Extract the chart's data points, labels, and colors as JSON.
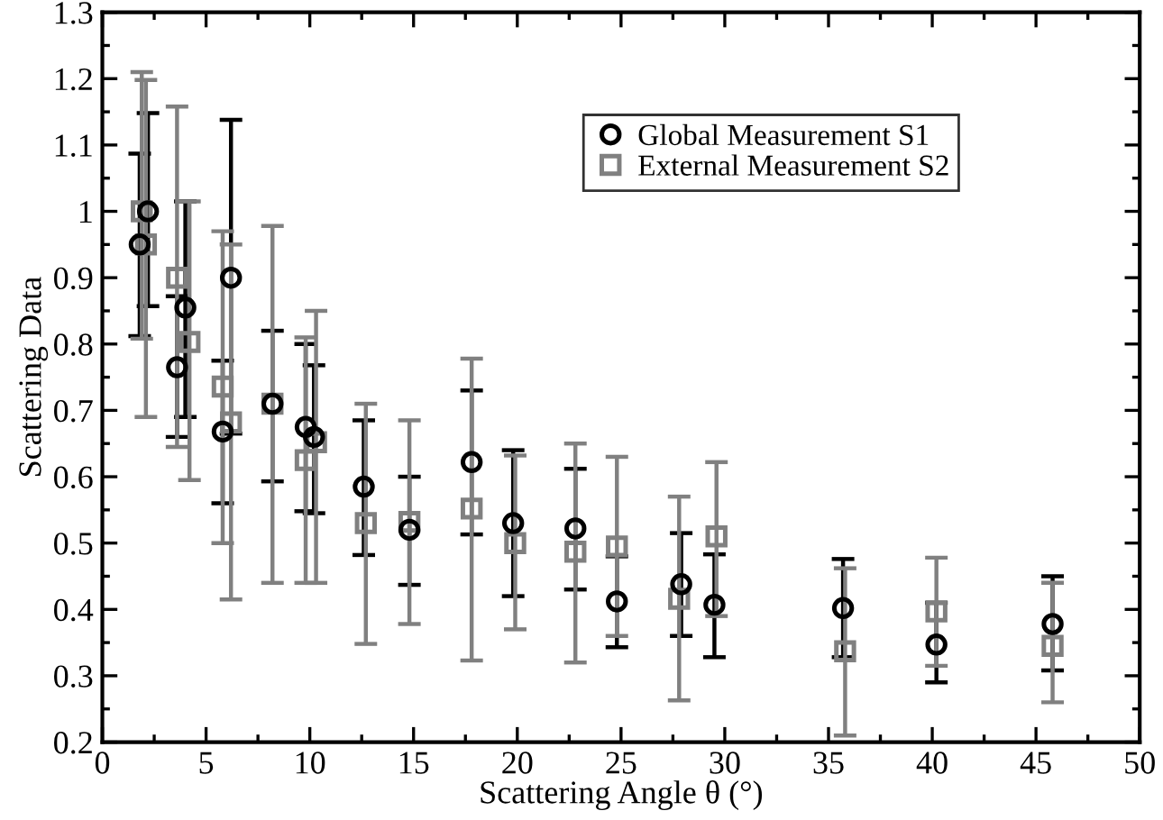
{
  "chart_data": {
    "type": "scatter",
    "xlabel": "Scattering Angle θ (°)",
    "ylabel": "Scattering Data",
    "xlim": [
      0,
      50
    ],
    "xticks": [
      0,
      5,
      10,
      15,
      20,
      25,
      30,
      35,
      40,
      45,
      50
    ],
    "ylim": [
      0.2,
      1.3
    ],
    "yticks": [
      0.2,
      0.3,
      0.4,
      0.5,
      0.6,
      0.7,
      0.8,
      0.9,
      {
        "value": 1.0,
        "label": "1"
      },
      1.1,
      1.2,
      1.3
    ],
    "grid": false,
    "legend": "top right",
    "series": [
      {
        "name": "Global Measurement S1",
        "color": "#000000",
        "marker": "circle",
        "x": [
          1.8,
          2.2,
          3.6,
          4.0,
          5.8,
          6.2,
          8.2,
          9.8,
          10.2,
          12.6,
          14.8,
          17.8,
          19.8,
          22.8,
          24.8,
          27.9,
          29.5,
          35.7,
          40.2,
          45.8
        ],
        "values": [
          0.95,
          1.0,
          0.765,
          0.855,
          0.668,
          0.9,
          0.71,
          0.675,
          0.66,
          0.585,
          0.52,
          0.622,
          0.53,
          0.522,
          0.412,
          0.438,
          0.407,
          0.402,
          0.347,
          0.378
        ],
        "errors": [
          [
            0.812,
            1.087
          ],
          [
            0.857,
            1.148
          ],
          [
            0.66,
            0.872
          ],
          [
            0.69,
            1.015
          ],
          [
            0.56,
            0.775
          ],
          [
            0.665,
            1.138
          ],
          [
            0.593,
            0.82
          ],
          [
            0.548,
            0.8
          ],
          [
            0.545,
            0.768
          ],
          [
            0.482,
            0.685
          ],
          [
            0.437,
            0.6
          ],
          [
            0.513,
            0.73
          ],
          [
            0.42,
            0.64
          ],
          [
            0.43,
            0.612
          ],
          [
            0.343,
            0.48
          ],
          [
            0.36,
            0.515
          ],
          [
            0.328,
            0.483
          ],
          [
            0.328,
            0.476
          ],
          [
            0.29,
            0.41
          ],
          [
            0.308,
            0.45
          ]
        ]
      },
      {
        "name": "External Measurement S2",
        "color": "#808080",
        "marker": "square",
        "x": [
          1.9,
          2.1,
          3.6,
          4.2,
          5.8,
          6.2,
          8.2,
          9.8,
          10.3,
          12.7,
          14.8,
          17.8,
          19.9,
          22.8,
          24.8,
          27.8,
          29.6,
          35.8,
          40.2,
          45.8
        ],
        "values": [
          1.0,
          0.95,
          0.9,
          0.803,
          0.736,
          0.682,
          0.71,
          0.625,
          0.652,
          0.53,
          0.532,
          0.552,
          0.5,
          0.487,
          0.495,
          0.416,
          0.51,
          0.337,
          0.397,
          0.345
        ],
        "errors": [
          [
            0.808,
            1.21
          ],
          [
            0.69,
            1.198
          ],
          [
            0.645,
            1.158
          ],
          [
            0.595,
            1.015
          ],
          [
            0.5,
            0.97
          ],
          [
            0.415,
            0.95
          ],
          [
            0.44,
            0.978
          ],
          [
            0.44,
            0.81
          ],
          [
            0.44,
            0.85
          ],
          [
            0.348,
            0.71
          ],
          [
            0.378,
            0.685
          ],
          [
            0.323,
            0.778
          ],
          [
            0.37,
            0.632
          ],
          [
            0.32,
            0.65
          ],
          [
            0.36,
            0.63
          ],
          [
            0.263,
            0.57
          ],
          [
            0.39,
            0.622
          ],
          [
            0.21,
            0.462
          ],
          [
            0.315,
            0.478
          ],
          [
            0.26,
            0.44
          ]
        ]
      }
    ]
  }
}
